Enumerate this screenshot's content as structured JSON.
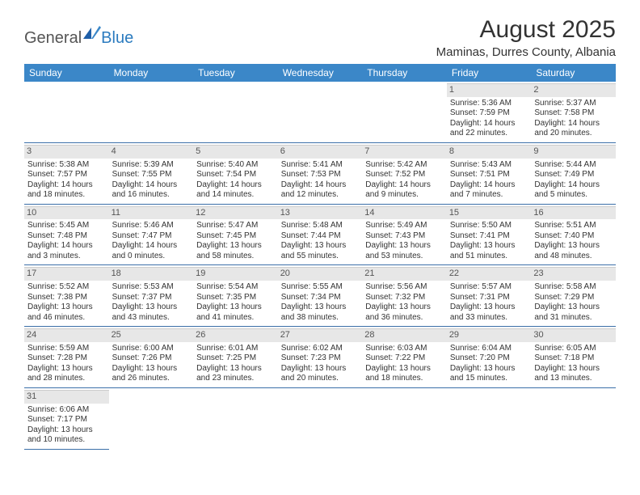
{
  "logo": {
    "general": "General",
    "blue": "Blue"
  },
  "title": "August 2025",
  "location": "Maminas, Durres County, Albania",
  "dayHeaders": [
    "Sunday",
    "Monday",
    "Tuesday",
    "Wednesday",
    "Thursday",
    "Friday",
    "Saturday"
  ],
  "colors": {
    "headerBg": "#3b87c8",
    "headerText": "#ffffff",
    "dayNumBg": "#e7e7e7",
    "rowBorder": "#3b6fa8",
    "logoBlue": "#2b7bbf",
    "text": "#333333"
  },
  "weeks": [
    [
      null,
      null,
      null,
      null,
      null,
      {
        "num": "1",
        "sunrise": "Sunrise: 5:36 AM",
        "sunset": "Sunset: 7:59 PM",
        "daylight": "Daylight: 14 hours and 22 minutes."
      },
      {
        "num": "2",
        "sunrise": "Sunrise: 5:37 AM",
        "sunset": "Sunset: 7:58 PM",
        "daylight": "Daylight: 14 hours and 20 minutes."
      }
    ],
    [
      {
        "num": "3",
        "sunrise": "Sunrise: 5:38 AM",
        "sunset": "Sunset: 7:57 PM",
        "daylight": "Daylight: 14 hours and 18 minutes."
      },
      {
        "num": "4",
        "sunrise": "Sunrise: 5:39 AM",
        "sunset": "Sunset: 7:55 PM",
        "daylight": "Daylight: 14 hours and 16 minutes."
      },
      {
        "num": "5",
        "sunrise": "Sunrise: 5:40 AM",
        "sunset": "Sunset: 7:54 PM",
        "daylight": "Daylight: 14 hours and 14 minutes."
      },
      {
        "num": "6",
        "sunrise": "Sunrise: 5:41 AM",
        "sunset": "Sunset: 7:53 PM",
        "daylight": "Daylight: 14 hours and 12 minutes."
      },
      {
        "num": "7",
        "sunrise": "Sunrise: 5:42 AM",
        "sunset": "Sunset: 7:52 PM",
        "daylight": "Daylight: 14 hours and 9 minutes."
      },
      {
        "num": "8",
        "sunrise": "Sunrise: 5:43 AM",
        "sunset": "Sunset: 7:51 PM",
        "daylight": "Daylight: 14 hours and 7 minutes."
      },
      {
        "num": "9",
        "sunrise": "Sunrise: 5:44 AM",
        "sunset": "Sunset: 7:49 PM",
        "daylight": "Daylight: 14 hours and 5 minutes."
      }
    ],
    [
      {
        "num": "10",
        "sunrise": "Sunrise: 5:45 AM",
        "sunset": "Sunset: 7:48 PM",
        "daylight": "Daylight: 14 hours and 3 minutes."
      },
      {
        "num": "11",
        "sunrise": "Sunrise: 5:46 AM",
        "sunset": "Sunset: 7:47 PM",
        "daylight": "Daylight: 14 hours and 0 minutes."
      },
      {
        "num": "12",
        "sunrise": "Sunrise: 5:47 AM",
        "sunset": "Sunset: 7:45 PM",
        "daylight": "Daylight: 13 hours and 58 minutes."
      },
      {
        "num": "13",
        "sunrise": "Sunrise: 5:48 AM",
        "sunset": "Sunset: 7:44 PM",
        "daylight": "Daylight: 13 hours and 55 minutes."
      },
      {
        "num": "14",
        "sunrise": "Sunrise: 5:49 AM",
        "sunset": "Sunset: 7:43 PM",
        "daylight": "Daylight: 13 hours and 53 minutes."
      },
      {
        "num": "15",
        "sunrise": "Sunrise: 5:50 AM",
        "sunset": "Sunset: 7:41 PM",
        "daylight": "Daylight: 13 hours and 51 minutes."
      },
      {
        "num": "16",
        "sunrise": "Sunrise: 5:51 AM",
        "sunset": "Sunset: 7:40 PM",
        "daylight": "Daylight: 13 hours and 48 minutes."
      }
    ],
    [
      {
        "num": "17",
        "sunrise": "Sunrise: 5:52 AM",
        "sunset": "Sunset: 7:38 PM",
        "daylight": "Daylight: 13 hours and 46 minutes."
      },
      {
        "num": "18",
        "sunrise": "Sunrise: 5:53 AM",
        "sunset": "Sunset: 7:37 PM",
        "daylight": "Daylight: 13 hours and 43 minutes."
      },
      {
        "num": "19",
        "sunrise": "Sunrise: 5:54 AM",
        "sunset": "Sunset: 7:35 PM",
        "daylight": "Daylight: 13 hours and 41 minutes."
      },
      {
        "num": "20",
        "sunrise": "Sunrise: 5:55 AM",
        "sunset": "Sunset: 7:34 PM",
        "daylight": "Daylight: 13 hours and 38 minutes."
      },
      {
        "num": "21",
        "sunrise": "Sunrise: 5:56 AM",
        "sunset": "Sunset: 7:32 PM",
        "daylight": "Daylight: 13 hours and 36 minutes."
      },
      {
        "num": "22",
        "sunrise": "Sunrise: 5:57 AM",
        "sunset": "Sunset: 7:31 PM",
        "daylight": "Daylight: 13 hours and 33 minutes."
      },
      {
        "num": "23",
        "sunrise": "Sunrise: 5:58 AM",
        "sunset": "Sunset: 7:29 PM",
        "daylight": "Daylight: 13 hours and 31 minutes."
      }
    ],
    [
      {
        "num": "24",
        "sunrise": "Sunrise: 5:59 AM",
        "sunset": "Sunset: 7:28 PM",
        "daylight": "Daylight: 13 hours and 28 minutes."
      },
      {
        "num": "25",
        "sunrise": "Sunrise: 6:00 AM",
        "sunset": "Sunset: 7:26 PM",
        "daylight": "Daylight: 13 hours and 26 minutes."
      },
      {
        "num": "26",
        "sunrise": "Sunrise: 6:01 AM",
        "sunset": "Sunset: 7:25 PM",
        "daylight": "Daylight: 13 hours and 23 minutes."
      },
      {
        "num": "27",
        "sunrise": "Sunrise: 6:02 AM",
        "sunset": "Sunset: 7:23 PM",
        "daylight": "Daylight: 13 hours and 20 minutes."
      },
      {
        "num": "28",
        "sunrise": "Sunrise: 6:03 AM",
        "sunset": "Sunset: 7:22 PM",
        "daylight": "Daylight: 13 hours and 18 minutes."
      },
      {
        "num": "29",
        "sunrise": "Sunrise: 6:04 AM",
        "sunset": "Sunset: 7:20 PM",
        "daylight": "Daylight: 13 hours and 15 minutes."
      },
      {
        "num": "30",
        "sunrise": "Sunrise: 6:05 AM",
        "sunset": "Sunset: 7:18 PM",
        "daylight": "Daylight: 13 hours and 13 minutes."
      }
    ],
    [
      {
        "num": "31",
        "sunrise": "Sunrise: 6:06 AM",
        "sunset": "Sunset: 7:17 PM",
        "daylight": "Daylight: 13 hours and 10 minutes."
      },
      null,
      null,
      null,
      null,
      null,
      null
    ]
  ]
}
